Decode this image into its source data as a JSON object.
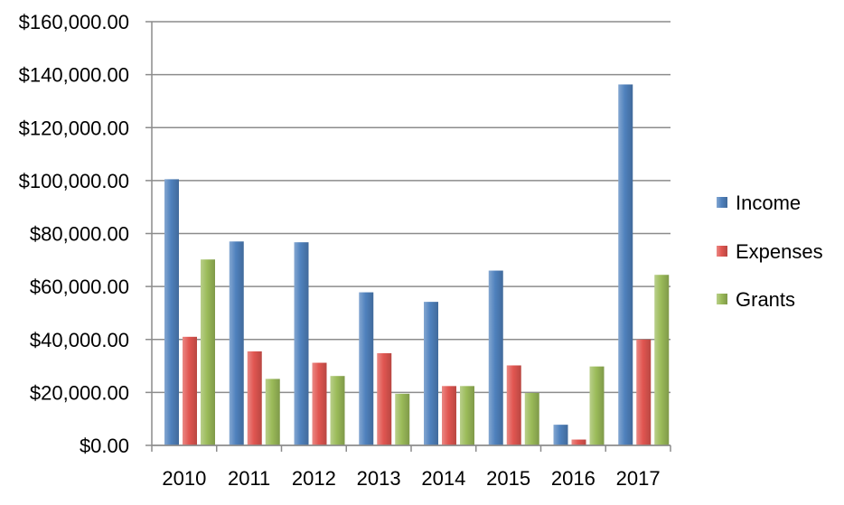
{
  "chart_data": {
    "type": "bar",
    "title": "",
    "xlabel": "",
    "ylabel": "",
    "categories": [
      "2010",
      "2011",
      "2012",
      "2013",
      "2014",
      "2015",
      "2016",
      "2017"
    ],
    "series": [
      {
        "name": "Income",
        "color": "#4f81bd",
        "values": [
          100500,
          77000,
          76700,
          57800,
          54200,
          66000,
          7800,
          136300
        ]
      },
      {
        "name": "Expenses",
        "color": "#e15651",
        "values": [
          41000,
          35500,
          31200,
          34800,
          22400,
          30200,
          2200,
          40000
        ]
      },
      {
        "name": "Grants",
        "color": "#9bbb59",
        "values": [
          70200,
          25100,
          26200,
          19500,
          22400,
          19800,
          29800,
          64400
        ]
      }
    ],
    "ylim": [
      0,
      160000
    ],
    "y_ticks": [
      0,
      20000,
      40000,
      60000,
      80000,
      100000,
      120000,
      140000,
      160000
    ],
    "y_tick_labels": [
      "$0.00",
      "$20,000.00",
      "$40,000.00",
      "$60,000.00",
      "$80,000.00",
      "$100,000.00",
      "$120,000.00",
      "$140,000.00",
      "$160,000.00"
    ],
    "grid": true,
    "legend_position": "right"
  }
}
